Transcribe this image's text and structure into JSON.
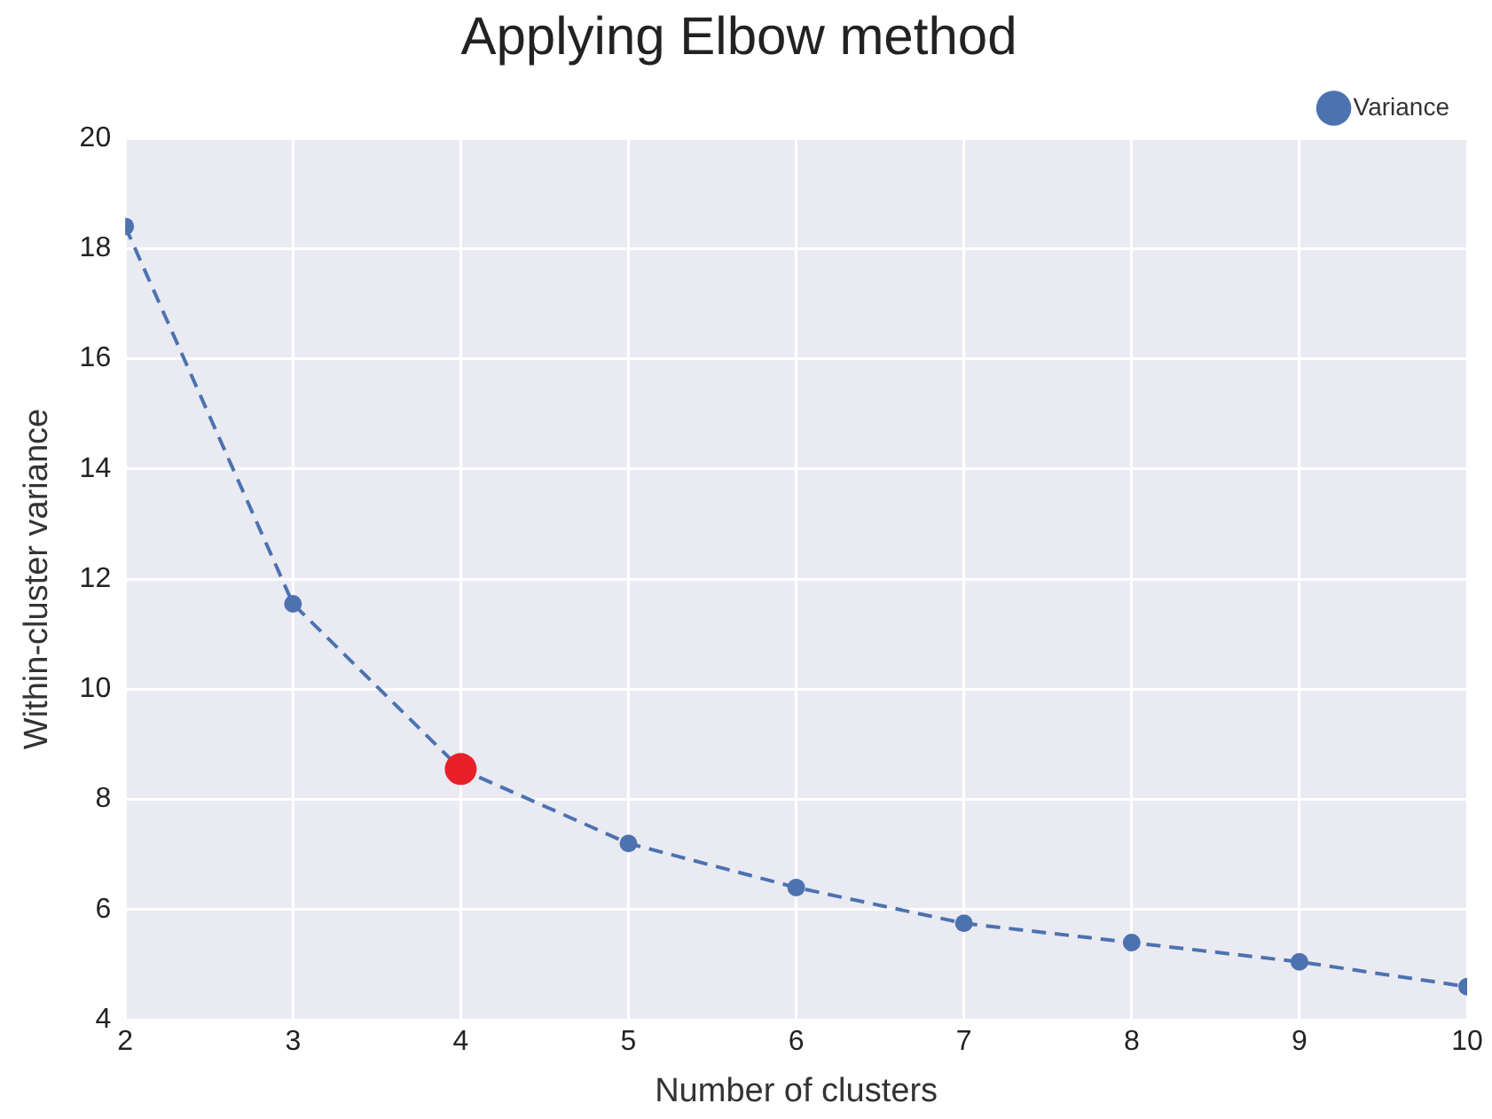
{
  "chart_data": {
    "type": "line",
    "title": "Applying Elbow method",
    "xlabel": "Number of clusters",
    "ylabel": "Within-cluster variance",
    "x": [
      2,
      3,
      4,
      5,
      6,
      7,
      8,
      9,
      10
    ],
    "series": [
      {
        "name": "Variance",
        "color": "#4c72b0",
        "values": [
          18.4,
          11.55,
          8.55,
          7.2,
          6.4,
          5.75,
          5.4,
          5.05,
          4.6
        ],
        "marker": "circle",
        "line_style": "dashed"
      },
      {
        "type": "scatter",
        "color": "#e8202a",
        "x": [
          4
        ],
        "values": [
          8.55
        ],
        "marker": "circle"
      }
    ],
    "xlim": [
      2,
      10
    ],
    "xticks": [
      2,
      3,
      4,
      5,
      6,
      7,
      8,
      9,
      10
    ],
    "ylim": [
      4,
      20
    ],
    "yticks": [
      4,
      6,
      8,
      10,
      12,
      14,
      16,
      18,
      20
    ],
    "grid": true,
    "legend": "top right"
  }
}
